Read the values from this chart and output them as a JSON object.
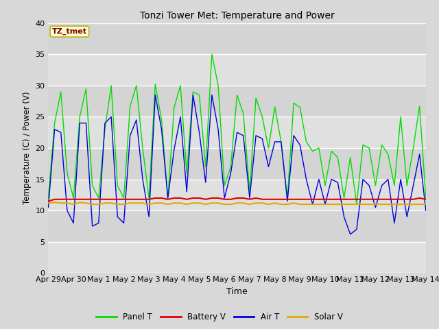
{
  "title": "Tonzi Tower Met: Temperature and Power",
  "xlabel": "Time",
  "ylabel": "Temperature (C) / Power (V)",
  "ylim": [
    0,
    40
  ],
  "yticks": [
    0,
    5,
    10,
    15,
    20,
    25,
    30,
    35,
    40
  ],
  "xlabels": [
    "Apr 29",
    "Apr 30",
    "May 1",
    "May 2",
    "May 3",
    "May 4",
    "May 5",
    "May 6",
    "May 7",
    "May 8",
    "May 9",
    "May 10",
    "May 11",
    "May 12",
    "May 13",
    "May 14"
  ],
  "annotation_text": "TZ_tmet",
  "annotation_box_color": "#ffffcc",
  "annotation_text_color": "#800000",
  "legend_items": [
    "Panel T",
    "Battery V",
    "Air T",
    "Solar V"
  ],
  "legend_colors": [
    "#00dd00",
    "#dd0000",
    "#0000dd",
    "#ddaa00"
  ],
  "panel_t": [
    12,
    24,
    29,
    16,
    12,
    25,
    29.5,
    14,
    12,
    23,
    30,
    14,
    12,
    26.7,
    30,
    20,
    12,
    30.2,
    24.5,
    12,
    26.5,
    30,
    16,
    29,
    28.5,
    17,
    35,
    30,
    14,
    17,
    28.5,
    25.5,
    13,
    28,
    25,
    20,
    26.6,
    21,
    12,
    27.2,
    26.5,
    21,
    19.5,
    20,
    14,
    19.5,
    18.5,
    12,
    18.5,
    11,
    20.5,
    20,
    14,
    20.5,
    19,
    14,
    25,
    14,
    20,
    26.7,
    12
  ],
  "battery_v": [
    11.5,
    11.8,
    11.8,
    11.8,
    11.8,
    11.8,
    11.8,
    11.8,
    11.8,
    11.8,
    11.8,
    11.8,
    11.8,
    11.8,
    11.8,
    11.8,
    11.8,
    12.0,
    12.0,
    11.8,
    12.0,
    12.0,
    11.8,
    12.0,
    12.0,
    11.8,
    12.0,
    12.0,
    11.8,
    11.8,
    12.0,
    12.0,
    11.8,
    12.0,
    11.8,
    11.8,
    11.8,
    11.8,
    11.8,
    11.8,
    11.8,
    11.8,
    11.8,
    11.8,
    11.8,
    11.8,
    11.8,
    11.8,
    11.8,
    11.8,
    11.8,
    11.8,
    11.8,
    11.8,
    11.8,
    11.8,
    11.8,
    11.8,
    11.8,
    12.0,
    11.8
  ],
  "air_t": [
    10.5,
    23,
    22.5,
    10,
    8,
    24,
    24,
    7.5,
    8,
    24,
    25,
    9,
    8,
    22,
    24.5,
    15,
    9,
    28.5,
    23,
    12,
    19.8,
    25,
    13,
    28.5,
    22.5,
    14.5,
    28.5,
    23,
    12,
    16,
    22.5,
    22,
    12,
    22,
    21.5,
    17,
    21,
    21,
    11.5,
    22,
    20.5,
    15,
    11,
    15,
    11,
    15,
    14.5,
    9,
    6.2,
    7,
    15,
    14,
    10.5,
    14,
    15,
    8,
    15,
    9,
    14,
    19,
    10
  ],
  "solar_v": [
    11.2,
    11.3,
    11.2,
    11.2,
    11.0,
    11.3,
    11.2,
    11.0,
    11.0,
    11.2,
    11.2,
    11.0,
    11.0,
    11.2,
    11.2,
    11.2,
    11.0,
    11.2,
    11.2,
    11.0,
    11.2,
    11.2,
    11.0,
    11.2,
    11.2,
    11.0,
    11.2,
    11.2,
    11.0,
    11.0,
    11.2,
    11.2,
    11.0,
    11.2,
    11.2,
    11.0,
    11.2,
    11.0,
    11.0,
    11.2,
    11.0,
    11.0,
    11.0,
    11.0,
    11.0,
    11.0,
    11.0,
    11.0,
    11.0,
    11.0,
    11.0,
    11.0,
    11.0,
    11.0,
    11.0,
    11.0,
    11.0,
    11.0,
    11.0,
    11.0,
    11.0
  ]
}
